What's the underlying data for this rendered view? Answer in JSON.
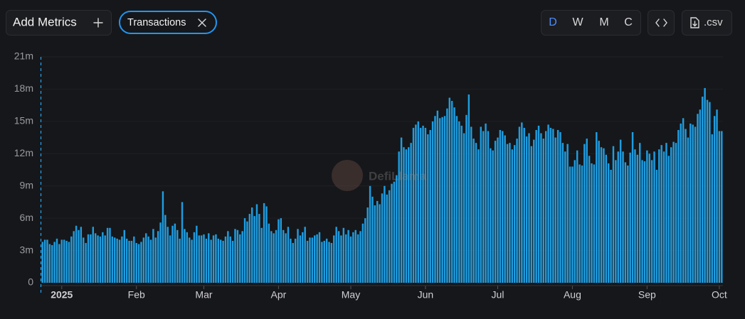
{
  "ui": {
    "add_metrics": "Add Metrics",
    "chip": "Transactions",
    "periods": [
      "D",
      "W",
      "M",
      "C"
    ],
    "csv": ".csv",
    "watermark": "DefiLlama"
  },
  "chart_data": {
    "type": "bar",
    "color": "#1f9de0",
    "grid": true,
    "ylim": [
      0,
      21000000
    ],
    "yticks": [
      0,
      {
        "value": 3000000,
        "label": "3m"
      },
      {
        "value": 6000000,
        "label": "6m"
      },
      {
        "value": 9000000,
        "label": "9m"
      },
      {
        "value": 12000000,
        "label": "12m"
      },
      {
        "value": 15000000,
        "label": "15m"
      },
      {
        "value": 18000000,
        "label": "18m"
      },
      {
        "value": 21000000,
        "label": "21m"
      }
    ],
    "categories": [
      null,
      null,
      null,
      null,
      null,
      null,
      null,
      null,
      "2025",
      null,
      null,
      null,
      null,
      null,
      null,
      null,
      null,
      null,
      null,
      null,
      null,
      null,
      null,
      null,
      null,
      null,
      null,
      null,
      null,
      null,
      null,
      null,
      null,
      null,
      null,
      null,
      null,
      null,
      null,
      "Feb",
      null,
      null,
      null,
      null,
      null,
      null,
      null,
      null,
      null,
      null,
      null,
      null,
      null,
      null,
      null,
      null,
      null,
      null,
      null,
      null,
      null,
      null,
      null,
      null,
      null,
      null,
      null,
      "Mar",
      null,
      null,
      null,
      null,
      null,
      null,
      null,
      null,
      null,
      null,
      null,
      null,
      null,
      null,
      null,
      null,
      null,
      null,
      null,
      null,
      null,
      null,
      null,
      null,
      null,
      null,
      null,
      null,
      null,
      null,
      "Apr",
      null,
      null,
      null,
      null,
      null,
      null,
      null,
      null,
      null,
      null,
      null,
      null,
      null,
      null,
      null,
      null,
      null,
      null,
      null,
      null,
      null,
      null,
      null,
      null,
      null,
      null,
      null,
      null,
      null,
      "May",
      null,
      null,
      null,
      null,
      null,
      null,
      null,
      null,
      null,
      null,
      null,
      null,
      null,
      null,
      null,
      null,
      null,
      null,
      null,
      null,
      null,
      null,
      null,
      null,
      null,
      null,
      null,
      null,
      null,
      null,
      "Jun",
      null,
      null,
      null,
      null,
      null,
      null,
      null,
      null,
      null,
      null,
      null,
      null,
      null,
      null,
      null,
      null,
      null,
      null,
      null,
      null,
      null,
      null,
      null,
      null,
      null,
      null,
      null,
      null,
      null,
      "Jul",
      null,
      null,
      null,
      null,
      null,
      null,
      null,
      null,
      null,
      null,
      null,
      null,
      null,
      null,
      null,
      null,
      null,
      null,
      null,
      null,
      null,
      null,
      null,
      null,
      null,
      null,
      null,
      null,
      null,
      null,
      "Aug",
      null,
      null,
      null,
      null,
      null,
      null,
      null,
      null,
      null,
      null,
      null,
      null,
      null,
      null,
      null,
      null,
      null,
      null,
      null,
      null,
      null,
      null,
      null,
      null,
      null,
      null,
      null,
      null,
      null,
      null,
      "Sep",
      null,
      null,
      null,
      null,
      null,
      null,
      null,
      null,
      null,
      null,
      null,
      null,
      null,
      null,
      null,
      null,
      null,
      null,
      null,
      null,
      null,
      null,
      null,
      null,
      null,
      null,
      null,
      null,
      null,
      "Oct",
      null
    ],
    "values": [
      3800000,
      4000000,
      4000000,
      3600000,
      3500000,
      3800000,
      4100000,
      3600000,
      4000000,
      4000000,
      3900000,
      3800000,
      4300000,
      4800000,
      5300000,
      4900000,
      5200000,
      4200000,
      3700000,
      4500000,
      4500000,
      5200000,
      4600000,
      4400000,
      4300000,
      4700000,
      4400000,
      5100000,
      5100000,
      4300000,
      4200000,
      4100000,
      4000000,
      4300000,
      4900000,
      4100000,
      3900000,
      3900000,
      4300000,
      3700000,
      3600000,
      3800000,
      4200000,
      4600000,
      4300000,
      4000000,
      5000000,
      4200000,
      4800000,
      5600000,
      8500000,
      6300000,
      5200000,
      4400000,
      5300000,
      5500000,
      4900000,
      4100000,
      7500000,
      5000000,
      4700000,
      4200000,
      4000000,
      4700000,
      5300000,
      4400000,
      4400000,
      4500000,
      4100000,
      4600000,
      4000000,
      4400000,
      4500000,
      4100000,
      4000000,
      3900000,
      4300000,
      4800000,
      4300000,
      3900000,
      5000000,
      4900000,
      4500000,
      4800000,
      6000000,
      5700000,
      6400000,
      7000000,
      6200000,
      7300000,
      6400000,
      5100000,
      7400000,
      7100000,
      5500000,
      4800000,
      4600000,
      4900000,
      5900000,
      6000000,
      4900000,
      4600000,
      5200000,
      4100000,
      3700000,
      4100000,
      5000000,
      4400000,
      4700000,
      5200000,
      3900000,
      4200000,
      4200000,
      4400000,
      4500000,
      4700000,
      3800000,
      3900000,
      4100000,
      3800000,
      3700000,
      4400000,
      5200000,
      4800000,
      4400000,
      5100000,
      4500000,
      4900000,
      4300000,
      4700000,
      4900000,
      4500000,
      4800000,
      5500000,
      6000000,
      7000000,
      9000000,
      8000000,
      7200000,
      7600000,
      7300000,
      8300000,
      9000000,
      8200000,
      8600000,
      9200000,
      9400000,
      10000000,
      12200000,
      13500000,
      12600000,
      12400000,
      12600000,
      13000000,
      14400000,
      14700000,
      15000000,
      14400000,
      14600000,
      14400000,
      13800000,
      14200000,
      15000000,
      15500000,
      16000000,
      15300000,
      15400000,
      15500000,
      16200000,
      17200000,
      16900000,
      16300000,
      15500000,
      15000000,
      14600000,
      13900000,
      15600000,
      17500000,
      14500000,
      13400000,
      13000000,
      12400000,
      14500000,
      14100000,
      14800000,
      14100000,
      12500000,
      12300000,
      13200000,
      13500000,
      14200000,
      14100000,
      13700000,
      12900000,
      13000000,
      12400000,
      12800000,
      13400000,
      14500000,
      14900000,
      14400000,
      13600000,
      13900000,
      12700000,
      13300000,
      14200000,
      14600000,
      13900000,
      13400000,
      14100000,
      14700000,
      14400000,
      14300000,
      13500000,
      14200000,
      14000000,
      13000000,
      12200000,
      12900000,
      10800000,
      10800000,
      11400000,
      12300000,
      11000000,
      10900000,
      12900000,
      13400000,
      11800000,
      11100000,
      11000000,
      14000000,
      13200000,
      12600000,
      12500000,
      11900000,
      11100000,
      10500000,
      12700000,
      11400000,
      12200000,
      13300000,
      12200000,
      11200000,
      10900000,
      12100000,
      14000000,
      12400000,
      11900000,
      13000000,
      11400000,
      11300000,
      12300000,
      12000000,
      11400000,
      12200000,
      10500000,
      12400000,
      12800000,
      12200000,
      13000000,
      11800000,
      12600000,
      13100000,
      13000000,
      14200000,
      14800000,
      15300000,
      14300000,
      13500000,
      14800000,
      14700000,
      14500000,
      15700000,
      16100000,
      17300000,
      18100000,
      17000000,
      16800000,
      13800000,
      15500000,
      16100000,
      14100000,
      14100000
    ]
  }
}
